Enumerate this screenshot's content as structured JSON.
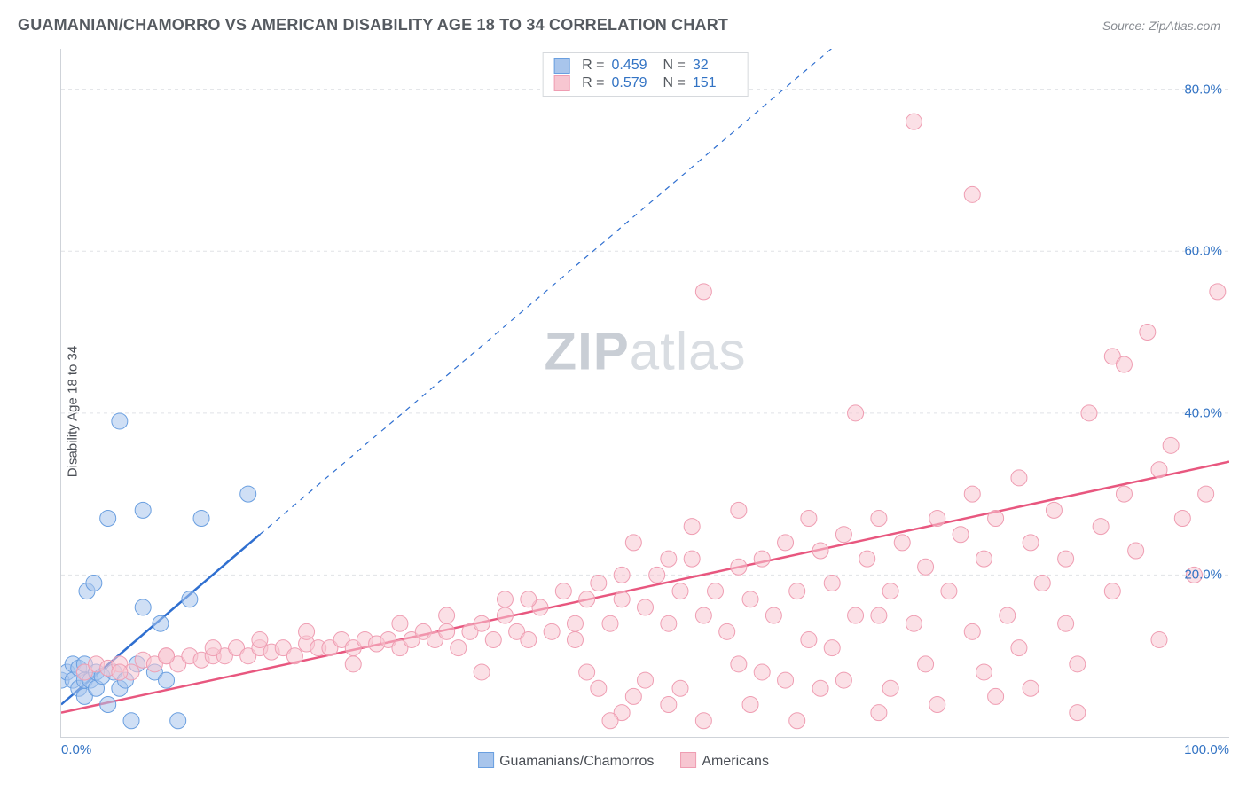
{
  "title": "GUAMANIAN/CHAMORRO VS AMERICAN DISABILITY AGE 18 TO 34 CORRELATION CHART",
  "source": "Source: ZipAtlas.com",
  "ylabel": "Disability Age 18 to 34",
  "watermark_bold": "ZIP",
  "watermark_light": "atlas",
  "chart": {
    "type": "scatter",
    "background_color": "#ffffff",
    "grid_color": "#e0e2e6",
    "grid_dash": "4,4",
    "axis_color": "#cfd3d9",
    "tick_label_color": "#3273c4",
    "tick_fontsize": 15,
    "xlim": [
      0,
      100
    ],
    "ylim": [
      0,
      85
    ],
    "xticks": [
      {
        "v": 0,
        "label": "0.0%"
      },
      {
        "v": 100,
        "label": "100.0%"
      }
    ],
    "yticks": [
      {
        "v": 20,
        "label": "20.0%"
      },
      {
        "v": 40,
        "label": "40.0%"
      },
      {
        "v": 60,
        "label": "60.0%"
      },
      {
        "v": 80,
        "label": "80.0%"
      }
    ],
    "marker_radius": 9,
    "marker_opacity": 0.55,
    "series": [
      {
        "id": "blue",
        "name": "Guamanians/Chamorros",
        "fill": "#a8c5ec",
        "stroke": "#6a9fe0",
        "trend_color": "#2f6fd0",
        "trend_width": 2.5,
        "trend_x1": 0,
        "trend_y1": 4,
        "trend_x2": 17,
        "trend_y2": 25,
        "trend_dash_extend": true,
        "trend_ext_x2": 70,
        "trend_ext_y2": 90,
        "R": "0.459",
        "N": "32",
        "points": [
          [
            0,
            7
          ],
          [
            0.5,
            8
          ],
          [
            1,
            7
          ],
          [
            1,
            9
          ],
          [
            1.5,
            6
          ],
          [
            1.5,
            8.5
          ],
          [
            2,
            5
          ],
          [
            2,
            7
          ],
          [
            2,
            9
          ],
          [
            2.2,
            18
          ],
          [
            2.5,
            7
          ],
          [
            2.8,
            19
          ],
          [
            3,
            6
          ],
          [
            3,
            8
          ],
          [
            3.5,
            7.5
          ],
          [
            4,
            4
          ],
          [
            4,
            27
          ],
          [
            4.5,
            8
          ],
          [
            5,
            6
          ],
          [
            5,
            39
          ],
          [
            5.5,
            7
          ],
          [
            6,
            2
          ],
          [
            6.5,
            9
          ],
          [
            7,
            16
          ],
          [
            7,
            28
          ],
          [
            8,
            8
          ],
          [
            8.5,
            14
          ],
          [
            9,
            7
          ],
          [
            10,
            2
          ],
          [
            11,
            17
          ],
          [
            12,
            27
          ],
          [
            16,
            30
          ]
        ]
      },
      {
        "id": "pink",
        "name": "Americans",
        "fill": "#f7c6d1",
        "stroke": "#ef9db2",
        "trend_color": "#e8577f",
        "trend_width": 2.5,
        "trend_x1": 0,
        "trend_y1": 3,
        "trend_x2": 100,
        "trend_y2": 34,
        "trend_dash_extend": false,
        "R": "0.579",
        "N": "151",
        "points": [
          [
            2,
            8
          ],
          [
            3,
            9
          ],
          [
            4,
            8.5
          ],
          [
            5,
            9
          ],
          [
            6,
            8
          ],
          [
            7,
            9.5
          ],
          [
            8,
            9
          ],
          [
            9,
            10
          ],
          [
            10,
            9
          ],
          [
            11,
            10
          ],
          [
            12,
            9.5
          ],
          [
            13,
            10
          ],
          [
            14,
            10
          ],
          [
            15,
            11
          ],
          [
            16,
            10
          ],
          [
            17,
            11
          ],
          [
            18,
            10.5
          ],
          [
            19,
            11
          ],
          [
            20,
            10
          ],
          [
            21,
            11.5
          ],
          [
            22,
            11
          ],
          [
            23,
            11
          ],
          [
            24,
            12
          ],
          [
            25,
            11
          ],
          [
            26,
            12
          ],
          [
            27,
            11.5
          ],
          [
            28,
            12
          ],
          [
            29,
            11
          ],
          [
            30,
            12
          ],
          [
            31,
            13
          ],
          [
            32,
            12
          ],
          [
            33,
            13
          ],
          [
            34,
            11
          ],
          [
            35,
            13
          ],
          [
            36,
            14
          ],
          [
            37,
            12
          ],
          [
            38,
            15
          ],
          [
            39,
            13
          ],
          [
            38,
            17
          ],
          [
            40,
            12
          ],
          [
            41,
            16
          ],
          [
            42,
            13
          ],
          [
            43,
            18
          ],
          [
            44,
            12
          ],
          [
            45,
            17
          ],
          [
            46,
            19
          ],
          [
            47,
            14
          ],
          [
            48,
            17
          ],
          [
            45,
            8
          ],
          [
            46,
            6
          ],
          [
            48,
            3
          ],
          [
            49,
            5
          ],
          [
            50,
            16
          ],
          [
            50,
            7
          ],
          [
            51,
            20
          ],
          [
            52,
            14
          ],
          [
            52,
            4
          ],
          [
            53,
            18
          ],
          [
            54,
            22
          ],
          [
            55,
            15
          ],
          [
            55,
            2
          ],
          [
            56,
            18
          ],
          [
            57,
            13
          ],
          [
            58,
            21
          ],
          [
            55,
            55
          ],
          [
            59,
            17
          ],
          [
            60,
            22
          ],
          [
            60,
            8
          ],
          [
            61,
            15
          ],
          [
            62,
            24
          ],
          [
            63,
            18
          ],
          [
            64,
            12
          ],
          [
            65,
            23
          ],
          [
            65,
            6
          ],
          [
            66,
            19
          ],
          [
            67,
            25
          ],
          [
            68,
            15
          ],
          [
            68,
            40
          ],
          [
            69,
            22
          ],
          [
            70,
            3
          ],
          [
            70,
            27
          ],
          [
            71,
            18
          ],
          [
            72,
            24
          ],
          [
            73,
            14
          ],
          [
            74,
            21
          ],
          [
            75,
            27
          ],
          [
            73,
            76
          ],
          [
            76,
            18
          ],
          [
            77,
            25
          ],
          [
            78,
            67
          ],
          [
            78,
            30
          ],
          [
            79,
            22
          ],
          [
            80,
            5
          ],
          [
            80,
            27
          ],
          [
            81,
            15
          ],
          [
            82,
            32
          ],
          [
            83,
            24
          ],
          [
            84,
            19
          ],
          [
            85,
            28
          ],
          [
            86,
            22
          ],
          [
            87,
            9
          ],
          [
            88,
            40
          ],
          [
            89,
            26
          ],
          [
            90,
            18
          ],
          [
            90,
            47
          ],
          [
            91,
            30
          ],
          [
            91,
            46
          ],
          [
            92,
            23
          ],
          [
            93,
            50
          ],
          [
            94,
            33
          ],
          [
            94,
            12
          ],
          [
            95,
            36
          ],
          [
            96,
            27
          ],
          [
            97,
            20
          ],
          [
            98,
            30
          ],
          [
            99,
            55
          ],
          [
            48,
            20
          ],
          [
            52,
            22
          ],
          [
            36,
            8
          ],
          [
            40,
            17
          ],
          [
            44,
            14
          ],
          [
            33,
            15
          ],
          [
            29,
            14
          ],
          [
            25,
            9
          ],
          [
            21,
            13
          ],
          [
            17,
            12
          ],
          [
            13,
            11
          ],
          [
            9,
            10
          ],
          [
            5,
            8
          ],
          [
            58,
            9
          ],
          [
            62,
            7
          ],
          [
            66,
            11
          ],
          [
            70,
            15
          ],
          [
            74,
            9
          ],
          [
            78,
            13
          ],
          [
            82,
            11
          ],
          [
            86,
            14
          ],
          [
            47,
            2
          ],
          [
            53,
            6
          ],
          [
            59,
            4
          ],
          [
            63,
            2
          ],
          [
            67,
            7
          ],
          [
            71,
            6
          ],
          [
            75,
            4
          ],
          [
            79,
            8
          ],
          [
            83,
            6
          ],
          [
            87,
            3
          ],
          [
            49,
            24
          ],
          [
            54,
            26
          ],
          [
            58,
            28
          ],
          [
            64,
            27
          ]
        ]
      }
    ],
    "bottom_legend_fontsize": 16,
    "corr_legend": {
      "border_color": "#d6d9dd",
      "label_color": "#555a60",
      "value_color": "#3273c4"
    }
  }
}
